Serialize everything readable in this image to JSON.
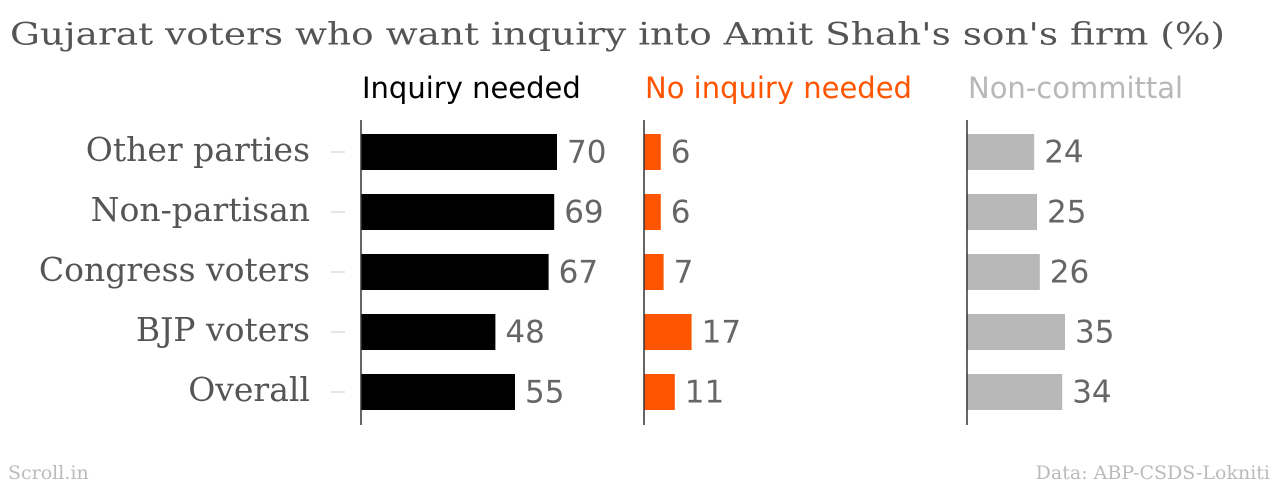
{
  "chart_data": {
    "type": "bar",
    "title": "Gujarat voters who want inquiry into Amit Shah's son's firm (%)",
    "categories": [
      "Other parties",
      "Non-partisan",
      "Congress voters",
      "BJP voters",
      "Overall"
    ],
    "series": [
      {
        "name": "Inquiry needed",
        "color": "#000000",
        "values": [
          70,
          69,
          67,
          48,
          55
        ]
      },
      {
        "name": "No inquiry needed",
        "color": "#ff5500",
        "values": [
          6,
          6,
          7,
          17,
          11
        ]
      },
      {
        "name": "Non-committal",
        "color": "#b8b8b8",
        "values": [
          24,
          25,
          26,
          35,
          34
        ]
      }
    ],
    "xlim": [
      0,
      100
    ],
    "credit": "Scroll.in",
    "source": "Data: ABP-CSDS-Lokniti"
  }
}
